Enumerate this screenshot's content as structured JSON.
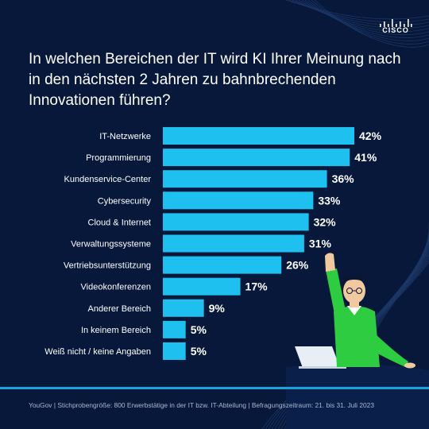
{
  "brand": "CISCO",
  "title": "In welchen Bereichen der IT wird KI Ihrer Meinung nach in den nächsten 2 Jahren zu bahnbrechenden Innovationen führen?",
  "footer": "YouGov | Stichprobengröße: 800 Erwerbstätige in der IT bzw. IT-Abteilung | Befragungszeitraum: 21. bis 31. Juli 2023",
  "colors": {
    "background": "#07183a",
    "bar": "#1ec0f0",
    "text": "#ffffff",
    "accent": "#1aa3dd",
    "figure_shirt": "#2ecc40"
  },
  "chart_data": {
    "type": "bar",
    "orientation": "horizontal",
    "categories": [
      "IT-Netzwerke",
      "Programmierung",
      "Kundenservice-Center",
      "Cybersecurity",
      "Cloud & Internet",
      "Verwaltungssysteme",
      "Vertriebsunterstützung",
      "Videokonferenzen",
      "Anderer Bereich",
      "In keinem Bereich",
      "Weiß nicht / keine Angaben"
    ],
    "values": [
      42,
      41,
      36,
      33,
      32,
      31,
      26,
      17,
      9,
      5,
      5
    ],
    "value_labels": [
      "42%",
      "41%",
      "36%",
      "33%",
      "32%",
      "31%",
      "26%",
      "17%",
      "9%",
      "5%",
      "5%"
    ],
    "unit": "%",
    "xlim": [
      0,
      42
    ],
    "grid": false,
    "legend": "none"
  }
}
